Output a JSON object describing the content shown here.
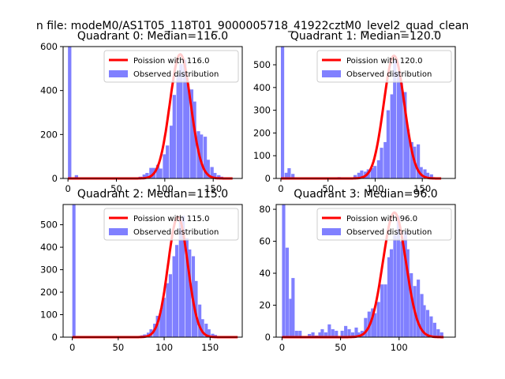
{
  "figure": {
    "suptitle": "n file: modeM0/AS1T05_118T01_9000005718_41922cztM0_level2_quad_clean"
  },
  "chart_data": [
    {
      "type": "bar",
      "title": "Quadrant 0: Median=116.0",
      "xlabel": "",
      "ylabel": "",
      "xlim": [
        -5,
        180
      ],
      "ylim": [
        0,
        600
      ],
      "xticks": [
        0,
        50,
        100,
        150
      ],
      "yticks": [
        0,
        200,
        400,
        600
      ],
      "legend": [
        "Poission with 116.0",
        "Observed distribution"
      ],
      "legend_position": "top-right",
      "colors": {
        "poisson": "#ff0000",
        "observed": "#8080ff"
      },
      "fit": {
        "label": "Poission with 116.0",
        "mean": 116,
        "peak": 565,
        "x_range": [
          0,
          170
        ]
      },
      "observed": {
        "label": "Observed distribution",
        "bin_width": 3.5,
        "bins": [
          [
            0,
            600
          ],
          [
            7,
            15
          ],
          [
            14,
            4
          ],
          [
            70,
            4
          ],
          [
            73,
            8
          ],
          [
            77,
            18
          ],
          [
            80,
            25
          ],
          [
            84,
            48
          ],
          [
            87,
            48
          ],
          [
            91,
            62
          ],
          [
            94,
            45
          ],
          [
            98,
            110
          ],
          [
            101,
            150
          ],
          [
            105,
            240
          ],
          [
            108,
            380
          ],
          [
            112,
            470
          ],
          [
            115,
            520
          ],
          [
            119,
            540
          ],
          [
            122,
            430
          ],
          [
            126,
            405
          ],
          [
            129,
            350
          ],
          [
            133,
            215
          ],
          [
            136,
            200
          ],
          [
            140,
            190
          ],
          [
            143,
            85
          ],
          [
            147,
            52
          ],
          [
            150,
            25
          ],
          [
            154,
            15
          ],
          [
            157,
            8
          ],
          [
            161,
            5
          ]
        ]
      }
    },
    {
      "type": "bar",
      "title": "Quadrant 1: Median=120.0",
      "xlabel": "",
      "ylabel": "",
      "xlim": [
        -5,
        185
      ],
      "ylim": [
        0,
        580
      ],
      "xticks": [
        0,
        50,
        100,
        150
      ],
      "yticks": [
        0,
        100,
        200,
        300,
        400,
        500
      ],
      "legend": [
        "Poission with 120.0",
        "Observed distribution"
      ],
      "legend_position": "top-right",
      "colors": {
        "poisson": "#ff0000",
        "observed": "#8080ff"
      },
      "fit": {
        "label": "Poission with 120.0",
        "mean": 120,
        "peak": 540,
        "x_range": [
          0,
          170
        ]
      },
      "observed": {
        "label": "Observed distribution",
        "bin_width": 3.5,
        "bins": [
          [
            0,
            580
          ],
          [
            4,
            25
          ],
          [
            7,
            45
          ],
          [
            11,
            20
          ],
          [
            60,
            6
          ],
          [
            63,
            4
          ],
          [
            70,
            4
          ],
          [
            77,
            15
          ],
          [
            81,
            25
          ],
          [
            84,
            35
          ],
          [
            88,
            30
          ],
          [
            91,
            40
          ],
          [
            95,
            45
          ],
          [
            98,
            55
          ],
          [
            102,
            80
          ],
          [
            105,
            135
          ],
          [
            109,
            160
          ],
          [
            112,
            300
          ],
          [
            116,
            370
          ],
          [
            119,
            520
          ],
          [
            123,
            470
          ],
          [
            126,
            420
          ],
          [
            130,
            380
          ],
          [
            133,
            215
          ],
          [
            137,
            160
          ],
          [
            140,
            140
          ],
          [
            144,
            150
          ],
          [
            147,
            50
          ],
          [
            151,
            40
          ],
          [
            154,
            25
          ],
          [
            158,
            18
          ]
        ]
      }
    },
    {
      "type": "bar",
      "title": "Quadrant 2: Median=115.0",
      "xlabel": "",
      "ylabel": "",
      "xlim": [
        -10,
        185
      ],
      "ylim": [
        0,
        590
      ],
      "xticks": [
        0,
        50,
        100,
        150
      ],
      "yticks": [
        0,
        100,
        200,
        300,
        400,
        500
      ],
      "legend": [
        "Poission with 115.0",
        "Observed distribution"
      ],
      "legend_position": "top-right",
      "colors": {
        "poisson": "#ff0000",
        "observed": "#8080ff"
      },
      "fit": {
        "label": "Poission with 115.0",
        "mean": 115,
        "peak": 535,
        "x_range": [
          0,
          180
        ]
      },
      "observed": {
        "label": "Observed distribution",
        "bin_width": 3.5,
        "bins": [
          [
            0,
            590
          ],
          [
            70,
            5
          ],
          [
            74,
            8
          ],
          [
            77,
            12
          ],
          [
            81,
            20
          ],
          [
            84,
            35
          ],
          [
            88,
            60
          ],
          [
            91,
            95
          ],
          [
            95,
            120
          ],
          [
            98,
            175
          ],
          [
            102,
            240
          ],
          [
            105,
            280
          ],
          [
            109,
            360
          ],
          [
            112,
            410
          ],
          [
            116,
            520
          ],
          [
            119,
            540
          ],
          [
            123,
            440
          ],
          [
            126,
            390
          ],
          [
            130,
            360
          ],
          [
            133,
            250
          ],
          [
            137,
            145
          ],
          [
            140,
            80
          ],
          [
            144,
            60
          ],
          [
            147,
            35
          ],
          [
            151,
            15
          ],
          [
            154,
            10
          ],
          [
            158,
            5
          ]
        ]
      }
    },
    {
      "type": "bar",
      "title": "Quadrant 3: Median=96.0",
      "xlabel": "",
      "ylabel": "",
      "xlim": [
        -5,
        148
      ],
      "ylim": [
        0,
        83
      ],
      "xticks": [
        0,
        50,
        100
      ],
      "yticks": [
        0,
        20,
        40,
        60,
        80
      ],
      "legend": [
        "Poission with 96.0",
        "Observed distribution"
      ],
      "legend_position": "top-right",
      "colors": {
        "poisson": "#ff0000",
        "observed": "#8080ff"
      },
      "fit": {
        "label": "Poission with 96.0",
        "mean": 96,
        "peak": 78,
        "x_range": [
          0,
          138
        ]
      },
      "observed": {
        "label": "Observed distribution",
        "bin_width": 2.8,
        "bins": [
          [
            0,
            83
          ],
          [
            3,
            56
          ],
          [
            6,
            24
          ],
          [
            8,
            37
          ],
          [
            11,
            4
          ],
          [
            14,
            4
          ],
          [
            22,
            2
          ],
          [
            25,
            3
          ],
          [
            28,
            1
          ],
          [
            31,
            3
          ],
          [
            33,
            5
          ],
          [
            36,
            3
          ],
          [
            39,
            8
          ],
          [
            42,
            5
          ],
          [
            45,
            4
          ],
          [
            50,
            4
          ],
          [
            53,
            7
          ],
          [
            56,
            5
          ],
          [
            59,
            3
          ],
          [
            62,
            6
          ],
          [
            64,
            3
          ],
          [
            67,
            4
          ],
          [
            70,
            12
          ],
          [
            73,
            16
          ],
          [
            76,
            18
          ],
          [
            78,
            15
          ],
          [
            81,
            22
          ],
          [
            84,
            33
          ],
          [
            87,
            33
          ],
          [
            90,
            50
          ],
          [
            92,
            55
          ],
          [
            95,
            64
          ],
          [
            98,
            76
          ],
          [
            101,
            60
          ],
          [
            104,
            66
          ],
          [
            106,
            55
          ],
          [
            109,
            40
          ],
          [
            112,
            32
          ],
          [
            115,
            36
          ],
          [
            118,
            27
          ],
          [
            120,
            20
          ],
          [
            123,
            17
          ],
          [
            126,
            13
          ],
          [
            129,
            9
          ],
          [
            132,
            5
          ],
          [
            135,
            3
          ]
        ]
      }
    }
  ]
}
